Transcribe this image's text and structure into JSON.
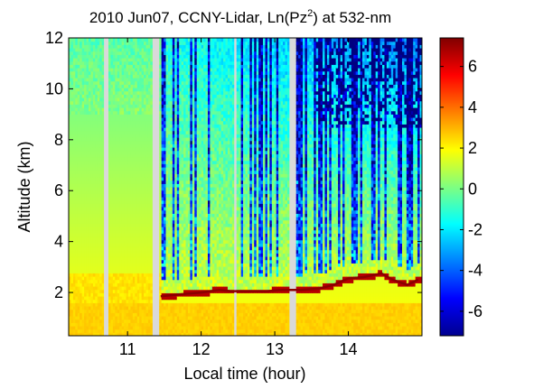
{
  "chart_data": {
    "type": "heatmap",
    "title": "2010 Jun07, CCNY-Lidar, Ln(Pz",
    "title_sup": "2",
    "title_tail": ") at 532-nm",
    "xlabel": "Local time (hour)",
    "ylabel": "Altitude (km)",
    "x_ticks": [
      "11",
      "12",
      "13",
      "14"
    ],
    "y_ticks": [
      "2",
      "4",
      "6",
      "8",
      "10",
      "12"
    ],
    "colorbar_ticks": [
      "-6",
      "-4",
      "-2",
      "0",
      "2",
      "4",
      "6"
    ],
    "xlim": [
      10.2,
      15.0
    ],
    "ylim": [
      0.3,
      12.0
    ],
    "clim": [
      -7.2,
      7.4
    ],
    "colormap": "jet",
    "data_gaps_hours": [
      [
        10.68,
        10.73
      ],
      [
        11.35,
        11.42
      ],
      [
        12.44,
        12.47
      ],
      [
        13.2,
        13.29
      ]
    ],
    "cloud_base_km": [
      {
        "x": 11.45,
        "y": 1.85
      },
      {
        "x": 11.8,
        "y": 1.95
      },
      {
        "x": 12.0,
        "y": 2.0
      },
      {
        "x": 12.25,
        "y": 2.1
      },
      {
        "x": 12.4,
        "y": 2.05
      },
      {
        "x": 12.9,
        "y": 2.05
      },
      {
        "x": 13.1,
        "y": 2.1
      },
      {
        "x": 13.35,
        "y": 2.1
      },
      {
        "x": 13.6,
        "y": 2.15
      },
      {
        "x": 13.8,
        "y": 2.3
      },
      {
        "x": 14.0,
        "y": 2.55
      },
      {
        "x": 14.2,
        "y": 2.6
      },
      {
        "x": 14.45,
        "y": 2.75
      },
      {
        "x": 14.6,
        "y": 2.5
      },
      {
        "x": 14.8,
        "y": 2.3
      },
      {
        "x": 14.95,
        "y": 2.5
      }
    ]
  }
}
